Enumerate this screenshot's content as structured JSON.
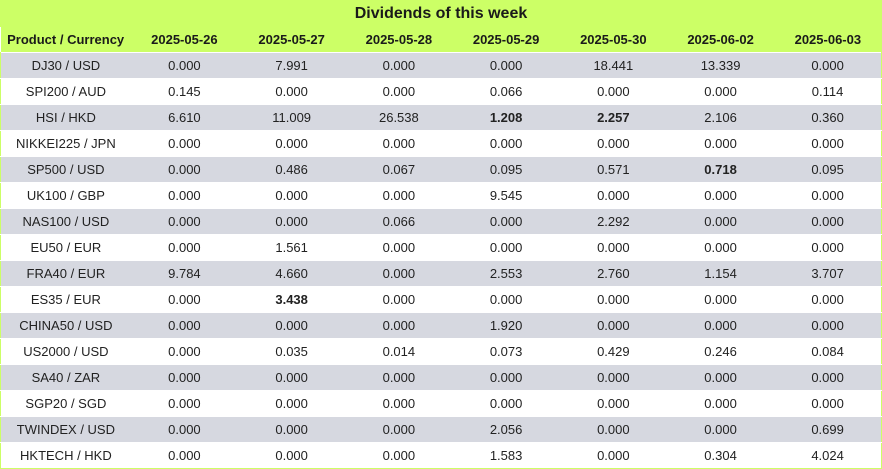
{
  "title": "Dividends of this week",
  "header": [
    "Product / Currency",
    "2025-05-26",
    "2025-05-27",
    "2025-05-28",
    "2025-05-29",
    "2025-05-30",
    "2025-06-02",
    "2025-06-03"
  ],
  "rows": [
    {
      "product": "DJ30 / USD",
      "values": [
        "0.000",
        "7.991",
        "0.000",
        "0.000",
        "18.441",
        "13.339",
        "0.000"
      ],
      "bold": []
    },
    {
      "product": "SPI200 / AUD",
      "values": [
        "0.145",
        "0.000",
        "0.000",
        "0.066",
        "0.000",
        "0.000",
        "0.114"
      ],
      "bold": []
    },
    {
      "product": "HSI / HKD",
      "values": [
        "6.610",
        "11.009",
        "26.538",
        "1.208",
        "2.257",
        "2.106",
        "0.360"
      ],
      "bold": [
        3,
        4
      ]
    },
    {
      "product": "NIKKEI225 / JPN",
      "values": [
        "0.000",
        "0.000",
        "0.000",
        "0.000",
        "0.000",
        "0.000",
        "0.000"
      ],
      "bold": []
    },
    {
      "product": "SP500 / USD",
      "values": [
        "0.000",
        "0.486",
        "0.067",
        "0.095",
        "0.571",
        "0.718",
        "0.095"
      ],
      "bold": [
        5
      ]
    },
    {
      "product": "UK100 / GBP",
      "values": [
        "0.000",
        "0.000",
        "0.000",
        "9.545",
        "0.000",
        "0.000",
        "0.000"
      ],
      "bold": []
    },
    {
      "product": "NAS100 / USD",
      "values": [
        "0.000",
        "0.000",
        "0.066",
        "0.000",
        "2.292",
        "0.000",
        "0.000"
      ],
      "bold": []
    },
    {
      "product": "EU50 / EUR",
      "values": [
        "0.000",
        "1.561",
        "0.000",
        "0.000",
        "0.000",
        "0.000",
        "0.000"
      ],
      "bold": []
    },
    {
      "product": "FRA40 / EUR",
      "values": [
        "9.784",
        "4.660",
        "0.000",
        "2.553",
        "2.760",
        "1.154",
        "3.707"
      ],
      "bold": []
    },
    {
      "product": "ES35 / EUR",
      "values": [
        "0.000",
        "3.438",
        "0.000",
        "0.000",
        "0.000",
        "0.000",
        "0.000"
      ],
      "bold": [
        1
      ]
    },
    {
      "product": "CHINA50 / USD",
      "values": [
        "0.000",
        "0.000",
        "0.000",
        "1.920",
        "0.000",
        "0.000",
        "0.000"
      ],
      "bold": []
    },
    {
      "product": "US2000 / USD",
      "values": [
        "0.000",
        "0.035",
        "0.014",
        "0.073",
        "0.429",
        "0.246",
        "0.084"
      ],
      "bold": []
    },
    {
      "product": "SA40 / ZAR",
      "values": [
        "0.000",
        "0.000",
        "0.000",
        "0.000",
        "0.000",
        "0.000",
        "0.000"
      ],
      "bold": []
    },
    {
      "product": "SGP20 / SGD",
      "values": [
        "0.000",
        "0.000",
        "0.000",
        "0.000",
        "0.000",
        "0.000",
        "0.000"
      ],
      "bold": []
    },
    {
      "product": "TWINDEX / USD",
      "values": [
        "0.000",
        "0.000",
        "0.000",
        "2.056",
        "0.000",
        "0.000",
        "0.699"
      ],
      "bold": []
    },
    {
      "product": "HKTECH / HKD",
      "values": [
        "0.000",
        "0.000",
        "0.000",
        "1.583",
        "0.000",
        "0.304",
        "4.024"
      ],
      "bold": []
    }
  ],
  "colors": {
    "header_bg": "#ccff66",
    "odd_row_bg": "#d6d8e0",
    "even_row_bg": "#ffffff"
  }
}
